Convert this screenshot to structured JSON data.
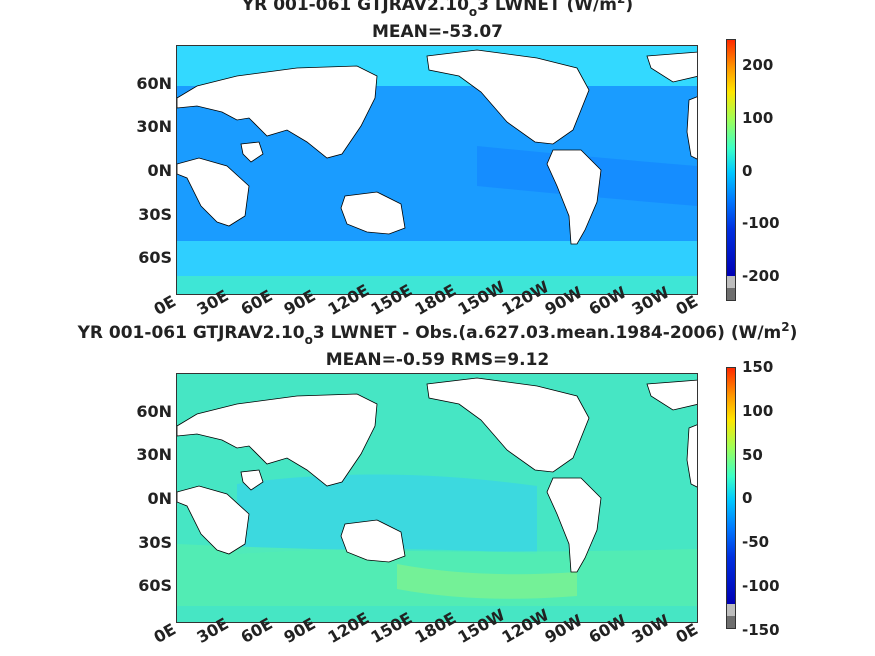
{
  "panels": [
    {
      "title_pre": "YR 001-061 GTJRAV2.10",
      "title_sub": "o",
      "title_post": "3  LWNET (W/m",
      "title_sup": "2",
      "title_end": ")",
      "stat": "MEAN=-53.07",
      "colorbar_ticks": [
        "200",
        "100",
        "0",
        "-100",
        "-200"
      ]
    },
    {
      "title_pre": "YR 001-061 GTJRAV2.10",
      "title_sub": "o",
      "title_post": "3  LWNET - Obs.(a.627.03.mean.1984-2006) (W/m",
      "title_sup": "2",
      "title_end": ")",
      "stat": "MEAN=-0.59 RMS=9.12",
      "colorbar_ticks": [
        "150",
        "100",
        "50",
        "0",
        "-50",
        "-100",
        "-150"
      ]
    }
  ],
  "lat_labels": [
    "60N",
    "30N",
    "0N",
    "30S",
    "60S"
  ],
  "lon_labels": [
    "0E",
    "30E",
    "60E",
    "90E",
    "120E",
    "150E",
    "180E",
    "150W",
    "120W",
    "90W",
    "60W",
    "30W",
    "0E"
  ],
  "colors": {
    "land": "#ffffff",
    "ocean_p1": "#1a9cff",
    "ocean_p2": "#46e6c4",
    "colorbar": [
      "#ff2a00",
      "#ff9a00",
      "#ffe600",
      "#9cff5a",
      "#3affc8",
      "#00c8ff",
      "#0050ff",
      "#0000b4"
    ]
  }
}
